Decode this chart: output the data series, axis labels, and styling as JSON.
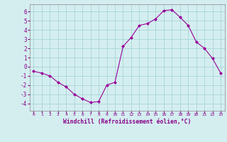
{
  "x": [
    0,
    1,
    2,
    3,
    4,
    5,
    6,
    7,
    8,
    9,
    10,
    11,
    12,
    13,
    14,
    15,
    16,
    17,
    18,
    19,
    20,
    21,
    22,
    23
  ],
  "y": [
    -0.5,
    -0.7,
    -1.0,
    -1.7,
    -2.2,
    -3.0,
    -3.5,
    -3.9,
    -3.8,
    -2.0,
    -1.7,
    2.2,
    3.2,
    4.5,
    4.7,
    5.2,
    6.1,
    6.2,
    5.4,
    4.5,
    2.7,
    2.0,
    0.9,
    -0.7
  ],
  "line_color": "#990099",
  "marker": "D",
  "marker_size": 2,
  "bg_color": "#d4eef0",
  "grid_color": "#a8d4d8",
  "xlabel": "Windchill (Refroidissement éolien,°C)",
  "xlabel_color": "#880088",
  "tick_color": "#880088",
  "ylim": [
    -4.8,
    6.8
  ],
  "xlim": [
    -0.5,
    23.5
  ],
  "yticks": [
    -4,
    -3,
    -2,
    -1,
    0,
    1,
    2,
    3,
    4,
    5,
    6
  ],
  "xticks": [
    0,
    1,
    2,
    3,
    4,
    5,
    6,
    7,
    8,
    9,
    10,
    11,
    12,
    13,
    14,
    15,
    16,
    17,
    18,
    19,
    20,
    21,
    22,
    23
  ]
}
